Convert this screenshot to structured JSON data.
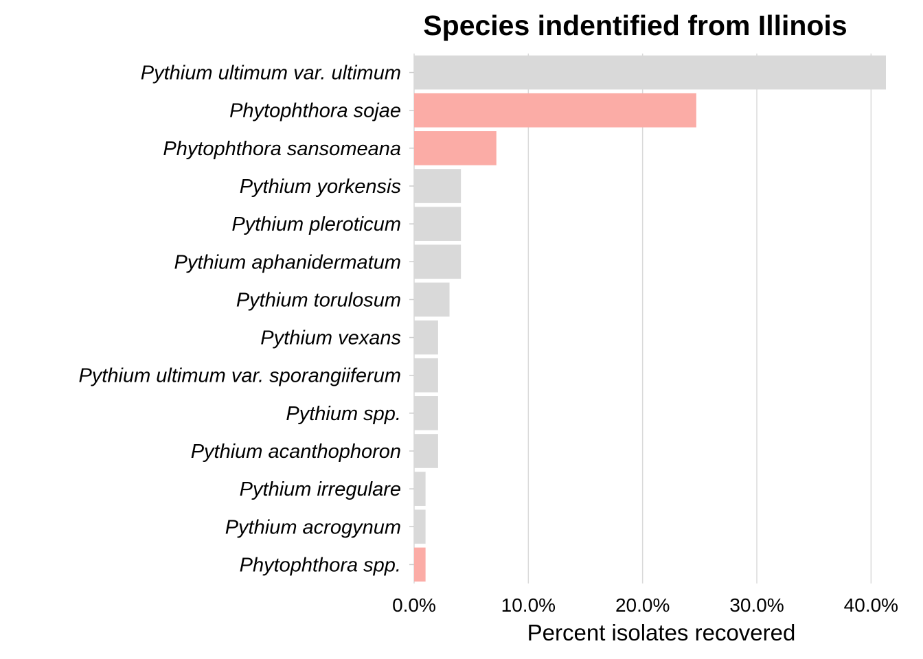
{
  "chart_data": {
    "type": "bar",
    "orientation": "horizontal",
    "title": "Species indentified from Illinois",
    "xlabel": "Percent isolates recovered",
    "ylabel": "",
    "xlim": [
      0,
      41.3
    ],
    "xticks": [
      0,
      10,
      20,
      30,
      40
    ],
    "xtick_labels": [
      "0.0%",
      "10.0%",
      "20.0%",
      "30.0%",
      "40.0%"
    ],
    "grid": "vertical major",
    "legend": "none",
    "colors": {
      "default": "#d9d9d9",
      "highlight": "#fbaca6"
    },
    "categories": [
      "Pythium ultimum var. ultimum",
      "Phytophthora sojae",
      "Phytophthora sansomeana",
      "Pythium yorkensis",
      "Pythium pleroticum",
      "Pythium aphanidermatum",
      "Pythium torulosum",
      "Pythium vexans",
      "Pythium ultimum var. sporangiiferum",
      "Pythium spp.",
      "Pythium acanthophoron",
      "Pythium irregulare",
      "Pythium acrogynum",
      "Phytophthora spp."
    ],
    "values": [
      41.3,
      24.7,
      7.2,
      4.1,
      4.1,
      4.1,
      3.1,
      2.1,
      2.1,
      2.1,
      2.1,
      1.0,
      1.0,
      1.0
    ],
    "highlight": [
      false,
      true,
      true,
      false,
      false,
      false,
      false,
      false,
      false,
      false,
      false,
      false,
      false,
      true
    ]
  }
}
